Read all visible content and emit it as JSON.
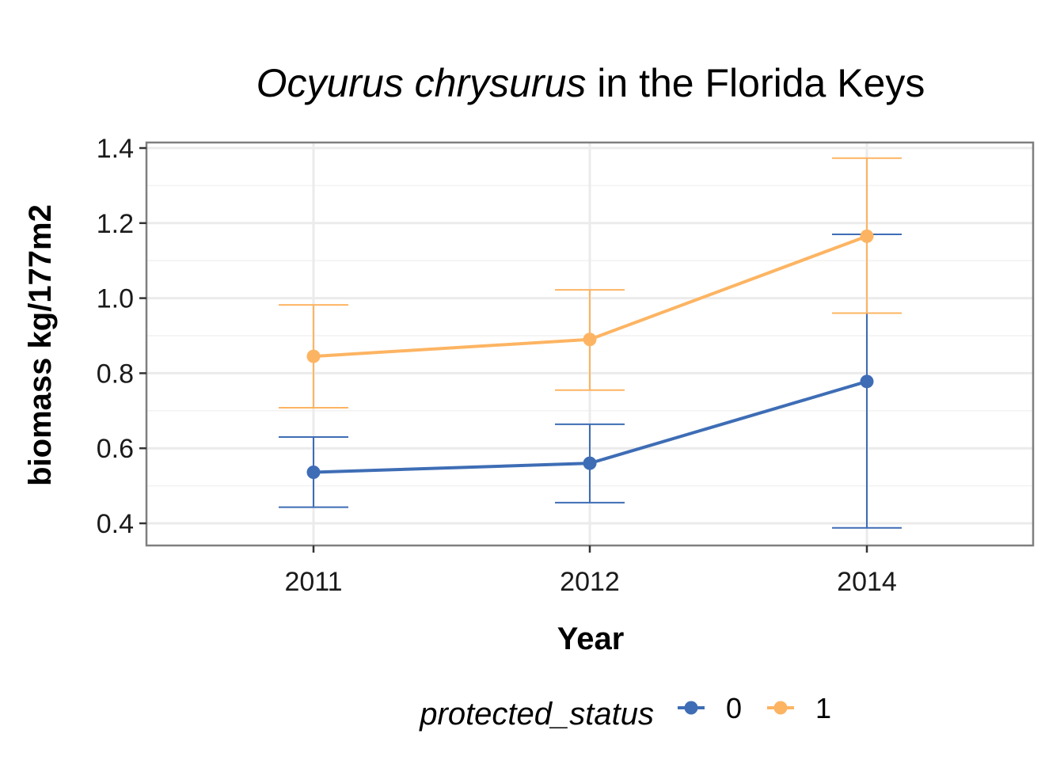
{
  "chart_data": {
    "type": "line",
    "title": {
      "italic": "Ocyurus chrysurus",
      "rest": " in the Florida Keys"
    },
    "xlabel": "Year",
    "ylabel": "biomass kg/177m2",
    "categories": [
      "2011",
      "2012",
      "2014"
    ],
    "ylim": [
      0.34,
      1.41
    ],
    "yticks": [
      0.4,
      0.6,
      0.8,
      1.0,
      1.2,
      1.4
    ],
    "ytick_labels": [
      "0.4",
      "0.6",
      "0.8",
      "1.0",
      "1.2",
      "1.4"
    ],
    "grid": true,
    "legend": {
      "title": "protected_status",
      "position": "bottom"
    },
    "series": [
      {
        "name": "0",
        "color": "#3E6DB5",
        "values": [
          0.536,
          0.56,
          0.778
        ],
        "lower": [
          0.443,
          0.455,
          0.388
        ],
        "upper": [
          0.63,
          0.664,
          1.17
        ]
      },
      {
        "name": "1",
        "color": "#FDB462",
        "values": [
          0.845,
          0.89,
          1.165
        ],
        "lower": [
          0.708,
          0.755,
          0.96
        ],
        "upper": [
          0.982,
          1.022,
          1.373
        ]
      }
    ]
  }
}
